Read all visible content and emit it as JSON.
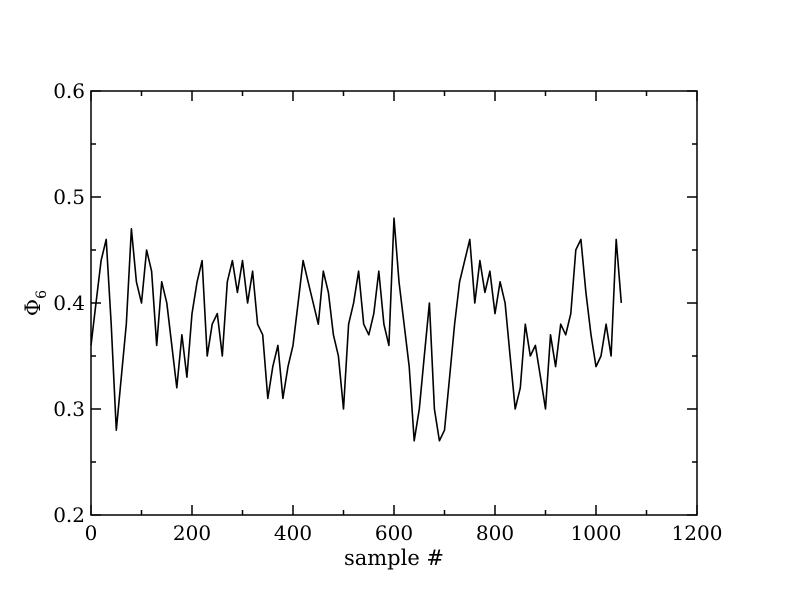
{
  "chart_data": {
    "type": "line",
    "xlabel": "sample #",
    "ylabel_main": "Φ",
    "ylabel_sub": "6",
    "xlim": [
      0,
      1200
    ],
    "ylim": [
      0.2,
      0.6
    ],
    "x_ticks": [
      0,
      200,
      400,
      600,
      800,
      1000,
      1200
    ],
    "x_tick_labels": [
      "0",
      "200",
      "400",
      "600",
      "800",
      "1000",
      "1200"
    ],
    "y_ticks": [
      0.2,
      0.3,
      0.4,
      0.5,
      0.6
    ],
    "y_tick_labels": [
      "0.2",
      "0.3",
      "0.4",
      "0.5",
      "0.6"
    ],
    "grid": false,
    "line_color": "#000000",
    "series": [
      {
        "x": [
          0,
          10,
          20,
          30,
          40,
          50,
          60,
          70,
          80,
          90,
          100,
          110,
          120,
          130,
          140,
          150,
          160,
          170,
          180,
          190,
          200,
          210,
          220,
          230,
          240,
          250,
          260,
          270,
          280,
          290,
          300,
          310,
          320,
          330,
          340,
          350,
          360,
          370,
          380,
          390,
          400,
          410,
          420,
          430,
          440,
          450,
          460,
          470,
          480,
          490,
          500,
          510,
          520,
          530,
          540,
          550,
          560,
          570,
          580,
          590,
          600,
          610,
          620,
          630,
          640,
          650,
          660,
          670,
          680,
          690,
          700,
          710,
          720,
          730,
          740,
          750,
          760,
          770,
          780,
          790,
          800,
          810,
          820,
          830,
          840,
          850,
          860,
          870,
          880,
          890,
          900,
          910,
          920,
          930,
          940,
          950,
          960,
          970,
          980,
          990,
          1000,
          1010,
          1020,
          1030,
          1040,
          1050
        ],
        "values": [
          0.36,
          0.4,
          0.44,
          0.46,
          0.38,
          0.28,
          0.33,
          0.38,
          0.47,
          0.42,
          0.4,
          0.45,
          0.43,
          0.36,
          0.42,
          0.4,
          0.36,
          0.32,
          0.37,
          0.33,
          0.39,
          0.42,
          0.44,
          0.35,
          0.38,
          0.39,
          0.35,
          0.42,
          0.44,
          0.41,
          0.44,
          0.4,
          0.43,
          0.38,
          0.37,
          0.31,
          0.34,
          0.36,
          0.31,
          0.34,
          0.36,
          0.4,
          0.44,
          0.42,
          0.4,
          0.38,
          0.43,
          0.41,
          0.37,
          0.35,
          0.3,
          0.38,
          0.4,
          0.43,
          0.38,
          0.37,
          0.39,
          0.43,
          0.38,
          0.36,
          0.48,
          0.42,
          0.38,
          0.34,
          0.27,
          0.3,
          0.35,
          0.4,
          0.3,
          0.27,
          0.28,
          0.33,
          0.38,
          0.42,
          0.44,
          0.46,
          0.4,
          0.44,
          0.41,
          0.43,
          0.39,
          0.42,
          0.4,
          0.35,
          0.3,
          0.32,
          0.38,
          0.35,
          0.36,
          0.33,
          0.3,
          0.37,
          0.34,
          0.38,
          0.37,
          0.39,
          0.45,
          0.46,
          0.41,
          0.37,
          0.34,
          0.35,
          0.38,
          0.35,
          0.46,
          0.4
        ]
      }
    ]
  }
}
